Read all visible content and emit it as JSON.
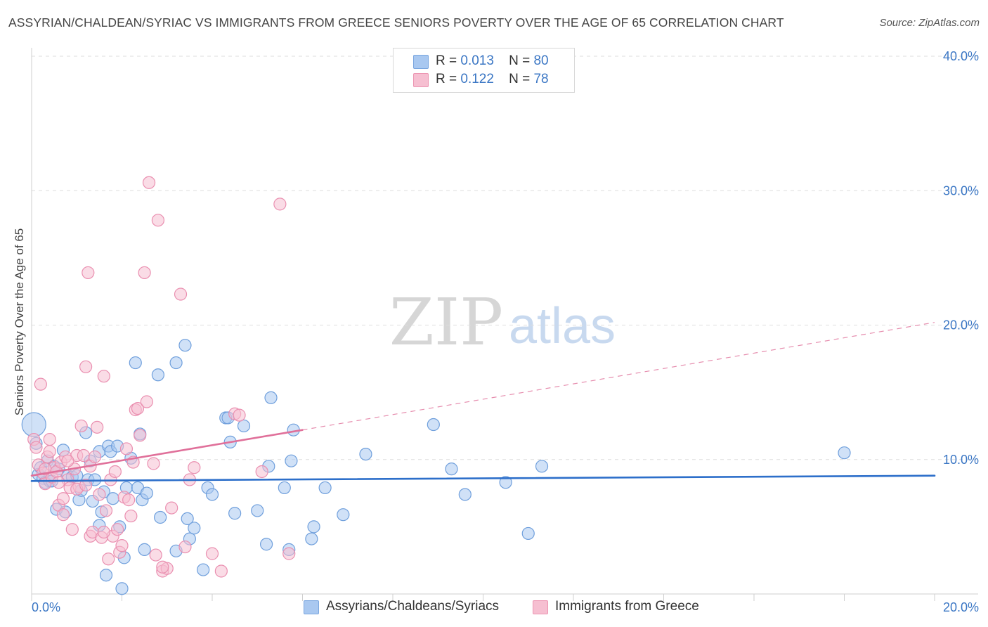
{
  "title": "ASSYRIAN/CHALDEAN/SYRIAC VS IMMIGRANTS FROM GREECE SENIORS POVERTY OVER THE AGE OF 65 CORRELATION CHART",
  "source": "Source: ZipAtlas.com",
  "watermark": {
    "zip": "ZIP",
    "atlas": "atlas"
  },
  "legend": {
    "r_label": "R =",
    "n_label": "N =",
    "rows": [
      {
        "r": "0.013",
        "n": "80",
        "color": "#a9c8f0",
        "border": "#7aa6df"
      },
      {
        "r": "0.122",
        "n": "78",
        "color": "#f6bfd1",
        "border": "#ec95b2"
      }
    ]
  },
  "chart_data": {
    "type": "scatter",
    "title": "ASSYRIAN/CHALDEAN/SYRIAC VS IMMIGRANTS FROM GREECE SENIORS POVERTY OVER THE AGE OF 65 CORRELATION CHART",
    "xlabel": "",
    "ylabel": "Seniors Poverty Over the Age of 65",
    "xlim": [
      0,
      20
    ],
    "ylim": [
      0,
      40
    ],
    "x_tick_labels": [
      "0.0%",
      "20.0%"
    ],
    "y_ticks": [
      10,
      20,
      30,
      40
    ],
    "y_tick_labels": [
      "10.0%",
      "20.0%",
      "30.0%",
      "40.0%"
    ],
    "grid": true,
    "series": [
      {
        "name": "Assyrians/Chaldeans/Syriacs",
        "color": "#a9c8f0",
        "stroke": "#6f9fdc",
        "line_color": "#2d6fca",
        "trend": {
          "x": [
            0,
            20
          ],
          "y": [
            8.4,
            8.8
          ],
          "style": "solid"
        },
        "points": [
          [
            0.05,
            12.6
          ],
          [
            0.1,
            11.2
          ],
          [
            0.15,
            8.9
          ],
          [
            0.2,
            9.4
          ],
          [
            0.25,
            8.6
          ],
          [
            0.3,
            8.3
          ],
          [
            0.35,
            9.9
          ],
          [
            0.4,
            8.4
          ],
          [
            0.45,
            8.4
          ],
          [
            0.5,
            9.5
          ],
          [
            0.55,
            6.3
          ],
          [
            0.6,
            9.3
          ],
          [
            0.7,
            10.7
          ],
          [
            0.75,
            6.1
          ],
          [
            0.8,
            8.8
          ],
          [
            0.9,
            8.7
          ],
          [
            1.0,
            8.8
          ],
          [
            1.05,
            7.0
          ],
          [
            1.1,
            7.7
          ],
          [
            1.2,
            12.0
          ],
          [
            1.25,
            8.5
          ],
          [
            1.3,
            9.9
          ],
          [
            1.35,
            6.9
          ],
          [
            1.4,
            8.5
          ],
          [
            1.5,
            10.6
          ],
          [
            1.5,
            5.1
          ],
          [
            1.55,
            6.1
          ],
          [
            1.6,
            7.6
          ],
          [
            1.65,
            1.4
          ],
          [
            1.7,
            11.0
          ],
          [
            1.75,
            10.6
          ],
          [
            1.8,
            7.1
          ],
          [
            1.9,
            11.0
          ],
          [
            1.95,
            5.0
          ],
          [
            2.0,
            0.4
          ],
          [
            2.05,
            2.7
          ],
          [
            2.1,
            7.9
          ],
          [
            2.2,
            10.1
          ],
          [
            2.3,
            17.2
          ],
          [
            2.35,
            7.9
          ],
          [
            2.4,
            11.9
          ],
          [
            2.45,
            7.0
          ],
          [
            2.5,
            3.3
          ],
          [
            2.55,
            7.5
          ],
          [
            2.8,
            16.3
          ],
          [
            2.85,
            5.7
          ],
          [
            3.2,
            17.2
          ],
          [
            3.2,
            3.2
          ],
          [
            3.4,
            18.5
          ],
          [
            3.45,
            5.6
          ],
          [
            3.5,
            4.1
          ],
          [
            3.6,
            4.9
          ],
          [
            3.8,
            1.8
          ],
          [
            3.9,
            7.9
          ],
          [
            4.0,
            7.4
          ],
          [
            4.3,
            13.1
          ],
          [
            4.35,
            13.1
          ],
          [
            4.4,
            11.3
          ],
          [
            4.5,
            6.0
          ],
          [
            4.7,
            12.5
          ],
          [
            5.0,
            6.2
          ],
          [
            5.2,
            3.7
          ],
          [
            5.25,
            9.5
          ],
          [
            5.3,
            14.6
          ],
          [
            5.6,
            7.9
          ],
          [
            5.7,
            3.3
          ],
          [
            5.75,
            9.9
          ],
          [
            5.8,
            12.2
          ],
          [
            6.2,
            4.1
          ],
          [
            6.25,
            5.0
          ],
          [
            6.5,
            7.9
          ],
          [
            6.9,
            5.9
          ],
          [
            7.4,
            10.4
          ],
          [
            8.9,
            12.6
          ],
          [
            9.3,
            9.3
          ],
          [
            9.6,
            7.4
          ],
          [
            10.5,
            8.3
          ],
          [
            11.0,
            4.5
          ],
          [
            11.3,
            9.5
          ],
          [
            18.0,
            10.5
          ]
        ]
      },
      {
        "name": "Immigrants from Greece",
        "color": "#f6bfd1",
        "stroke": "#ea8fb0",
        "line_color": "#e0709a",
        "trend": {
          "x": [
            0,
            6
          ],
          "y": [
            8.8,
            12.2
          ],
          "style": "solid",
          "extended_to": [
            20,
            20.2
          ],
          "extended_style": "dashed"
        },
        "points": [
          [
            0.05,
            11.5
          ],
          [
            0.1,
            10.9
          ],
          [
            0.15,
            9.6
          ],
          [
            0.2,
            15.6
          ],
          [
            0.25,
            9.0
          ],
          [
            0.3,
            8.2
          ],
          [
            0.35,
            10.2
          ],
          [
            0.4,
            10.6
          ],
          [
            0.45,
            8.7
          ],
          [
            0.5,
            9.4
          ],
          [
            0.55,
            9.1
          ],
          [
            0.6,
            6.6
          ],
          [
            0.65,
            9.8
          ],
          [
            0.7,
            5.9
          ],
          [
            0.75,
            10.2
          ],
          [
            0.8,
            8.5
          ],
          [
            0.85,
            7.9
          ],
          [
            0.9,
            4.8
          ],
          [
            0.95,
            9.3
          ],
          [
            1.0,
            10.3
          ],
          [
            1.05,
            8.0
          ],
          [
            1.1,
            12.5
          ],
          [
            1.15,
            10.3
          ],
          [
            1.2,
            16.9
          ],
          [
            1.25,
            23.9
          ],
          [
            1.3,
            9.5
          ],
          [
            1.3,
            4.3
          ],
          [
            1.35,
            4.6
          ],
          [
            1.4,
            10.2
          ],
          [
            1.45,
            12.4
          ],
          [
            1.5,
            7.4
          ],
          [
            1.55,
            4.2
          ],
          [
            1.6,
            16.2
          ],
          [
            1.65,
            6.2
          ],
          [
            1.7,
            2.6
          ],
          [
            1.75,
            8.5
          ],
          [
            1.8,
            4.3
          ],
          [
            1.85,
            9.1
          ],
          [
            1.9,
            4.8
          ],
          [
            1.95,
            3.1
          ],
          [
            2.0,
            3.6
          ],
          [
            2.05,
            7.2
          ],
          [
            2.1,
            10.8
          ],
          [
            2.15,
            7.0
          ],
          [
            2.2,
            5.8
          ],
          [
            2.25,
            9.8
          ],
          [
            2.3,
            13.7
          ],
          [
            2.35,
            13.8
          ],
          [
            2.4,
            11.8
          ],
          [
            2.5,
            23.9
          ],
          [
            2.55,
            14.3
          ],
          [
            2.6,
            30.6
          ],
          [
            2.7,
            9.7
          ],
          [
            2.75,
            2.9
          ],
          [
            2.8,
            27.8
          ],
          [
            2.9,
            1.7
          ],
          [
            3.0,
            1.9
          ],
          [
            3.1,
            6.4
          ],
          [
            3.3,
            22.3
          ],
          [
            3.4,
            3.5
          ],
          [
            3.5,
            8.5
          ],
          [
            3.6,
            9.4
          ],
          [
            4.0,
            3.0
          ],
          [
            4.2,
            1.7
          ],
          [
            4.5,
            13.4
          ],
          [
            4.6,
            13.3
          ],
          [
            5.1,
            9.1
          ],
          [
            5.5,
            29.0
          ],
          [
            5.7,
            3.0
          ],
          [
            1.0,
            7.8
          ],
          [
            0.4,
            11.5
          ],
          [
            0.6,
            8.3
          ],
          [
            0.8,
            9.9
          ],
          [
            1.2,
            8.1
          ],
          [
            0.3,
            9.3
          ],
          [
            2.9,
            2.0
          ],
          [
            1.6,
            4.6
          ],
          [
            0.7,
            7.1
          ]
        ]
      }
    ]
  }
}
